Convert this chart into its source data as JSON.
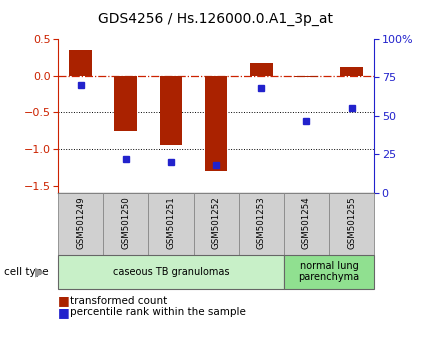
{
  "title": "GDS4256 / Hs.126000.0.A1_3p_at",
  "samples": [
    "GSM501249",
    "GSM501250",
    "GSM501251",
    "GSM501252",
    "GSM501253",
    "GSM501254",
    "GSM501255"
  ],
  "red_bars": [
    0.35,
    -0.75,
    -0.95,
    -1.3,
    0.17,
    -0.02,
    0.12
  ],
  "blue_squares": [
    70,
    22,
    20,
    18,
    68,
    47,
    55
  ],
  "ylim_left": [
    -1.6,
    0.5
  ],
  "ylim_right": [
    0,
    100
  ],
  "left_ticks": [
    0.5,
    0.0,
    -0.5,
    -1.0,
    -1.5
  ],
  "right_ticks": [
    100,
    75,
    50,
    25,
    0
  ],
  "right_tick_labels": [
    "100%",
    "75",
    "50",
    "25",
    "0"
  ],
  "groups": [
    {
      "label": "caseous TB granulomas",
      "samples": [
        0,
        1,
        2,
        3,
        4
      ],
      "color": "#c8f0c8"
    },
    {
      "label": "normal lung\nparenchyma",
      "samples": [
        5,
        6
      ],
      "color": "#90e090"
    }
  ],
  "bar_color": "#aa2200",
  "square_color": "#2222cc",
  "hline_color": "#cc2200",
  "dotted_lines": [
    -0.5,
    -1.0
  ],
  "cell_type_label": "cell type",
  "legend_red": "transformed count",
  "legend_blue": "percentile rank within the sample",
  "bar_width": 0.5,
  "title_fontsize": 10,
  "tick_fontsize": 8,
  "sample_box_color": "#d0d0d0",
  "sample_box_edge": "#888888"
}
